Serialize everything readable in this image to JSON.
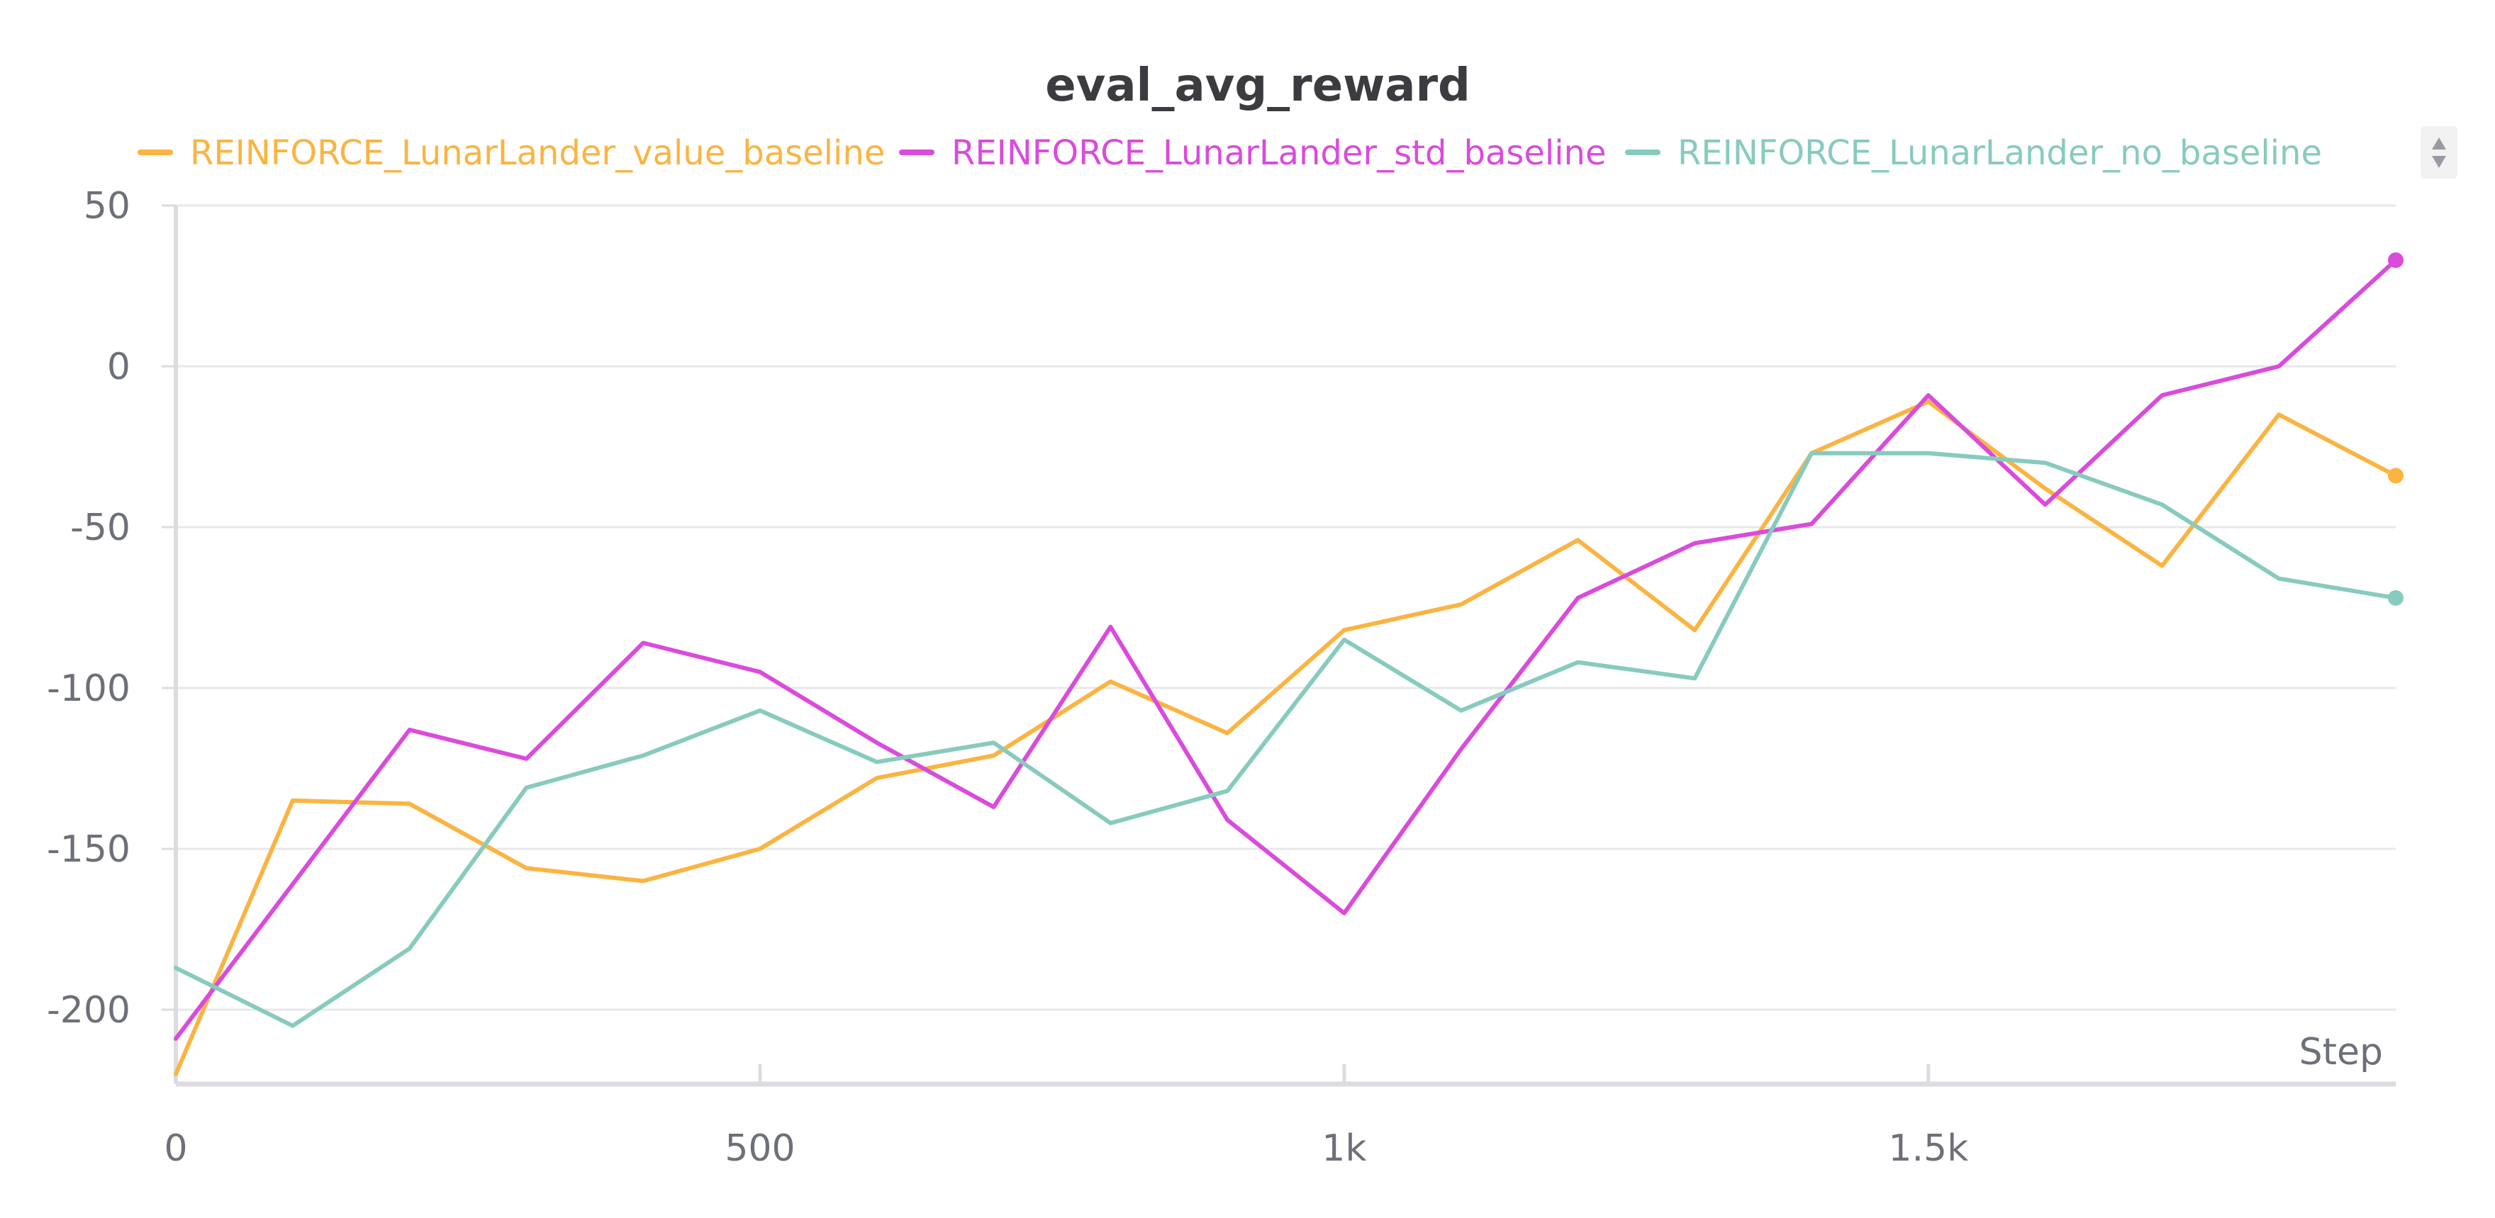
{
  "chart_data": {
    "type": "line",
    "title": "eval_avg_reward",
    "xlabel": "Step",
    "ylabel": "",
    "xlim": [
      0,
      1900
    ],
    "ylim": [
      -220,
      50
    ],
    "x_ticks": [
      {
        "value": 0,
        "label": "0"
      },
      {
        "value": 500,
        "label": "500"
      },
      {
        "value": 1000,
        "label": "1k"
      },
      {
        "value": 1500,
        "label": "1.5k"
      }
    ],
    "y_ticks": [
      {
        "value": 50,
        "label": "50"
      },
      {
        "value": 0,
        "label": "0"
      },
      {
        "value": -50,
        "label": "-50"
      },
      {
        "value": -100,
        "label": "-100"
      },
      {
        "value": -150,
        "label": "-150"
      },
      {
        "value": -200,
        "label": "-200"
      }
    ],
    "grid": true,
    "legend_position": "top",
    "x": [
      0,
      100,
      200,
      300,
      400,
      500,
      600,
      700,
      800,
      900,
      1000,
      1100,
      1200,
      1300,
      1400,
      1500,
      1600,
      1700,
      1800,
      1900
    ],
    "series": [
      {
        "name": "REINFORCE_LunarLander_value_baseline",
        "color": "#fbb442",
        "values": [
          -220,
          -135,
          -136,
          -156,
          -160,
          -150,
          -128,
          -121,
          -98,
          -114,
          -82,
          -74,
          -54,
          -82,
          -27,
          -11,
          -38,
          -62,
          -15,
          -34
        ]
      },
      {
        "name": "REINFORCE_LunarLander_std_baseline",
        "color": "#da4bdc",
        "values": [
          -209,
          -161,
          -113,
          -122,
          -86,
          -95,
          -117,
          -137,
          -81,
          -141,
          -170,
          -119,
          -72,
          -55,
          -49,
          -9,
          -43,
          -9,
          0,
          33
        ]
      },
      {
        "name": "REINFORCE_LunarLander_no_baseline",
        "color": "#87cbbe",
        "values": [
          -187,
          -205,
          -181,
          -131,
          -121,
          -107,
          -123,
          -117,
          -142,
          -132,
          -85,
          -107,
          -92,
          -97,
          -27,
          -27,
          -30,
          -43,
          -66,
          -72
        ]
      }
    ]
  }
}
